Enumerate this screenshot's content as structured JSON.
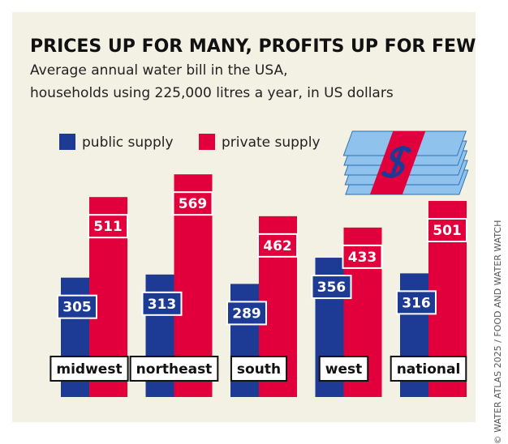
{
  "chart_data": {
    "type": "bar",
    "title": "PRICES UP FOR MANY, PROFITS UP FOR FEW",
    "subtitle": [
      "Average annual water bill in the USA,",
      "households using 225,000 litres a year, in US dollars"
    ],
    "source": "© WATER ATLAS 2025 / FOOD AND WATER WATCH",
    "categories": [
      "midwest",
      "northeast",
      "south",
      "west",
      "national"
    ],
    "series": [
      {
        "name": "public supply",
        "color": "#1d3b94",
        "values": [
          305,
          313,
          289,
          356,
          316
        ]
      },
      {
        "name": "private supply",
        "color": "#e2003c",
        "values": [
          511,
          569,
          462,
          433,
          501
        ]
      }
    ]
  }
}
